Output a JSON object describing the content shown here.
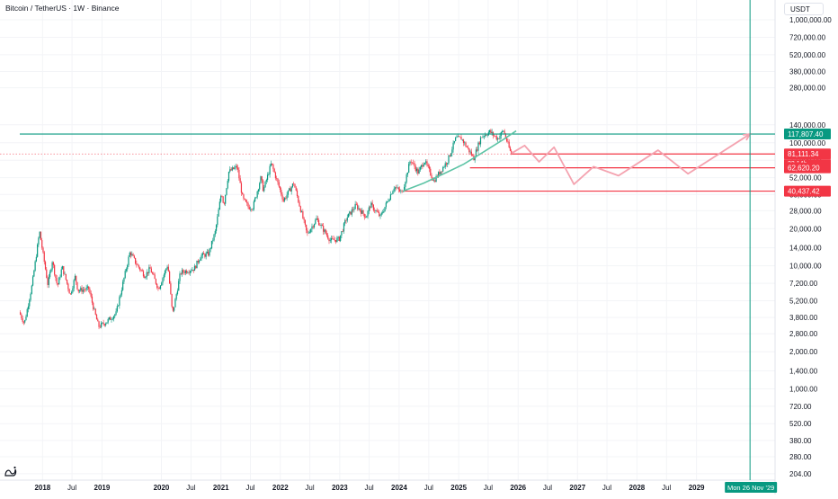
{
  "header": {
    "title": "Bitcoin / TetherUS · 1W · Binance",
    "currency_label": "USDT"
  },
  "chart_data": {
    "type": "candlestick",
    "title": "Bitcoin / TetherUS · 1W · Binance",
    "y_scale": "log",
    "ylim": [
      200,
      1000000
    ],
    "x_range": [
      "2017-08-14",
      "2030-06-01"
    ],
    "y_ticks": [
      "1,000,000.00",
      "720,000.00",
      "520,000.00",
      "380,000.00",
      "280,000.00",
      "140,000.00",
      "100,000.00",
      "72,000.00",
      "52,000.00",
      "38,000.00",
      "28,000.00",
      "20,000.00",
      "14,000.00",
      "10,000.00",
      "7,200.00",
      "5,200.00",
      "3,800.00",
      "2,800.00",
      "2,000.00",
      "1,400.00",
      "1,000.00",
      "720.00",
      "520.00",
      "380.00",
      "280.00",
      "204.00"
    ],
    "x_ticks": [
      {
        "label": "2018",
        "date": "2018-01-01"
      },
      {
        "label": "Jul",
        "date": "2018-07-01"
      },
      {
        "label": "2019",
        "date": "2019-01-01"
      },
      {
        "label": "2020",
        "date": "2020-01-01"
      },
      {
        "label": "Jul",
        "date": "2020-07-01"
      },
      {
        "label": "2021",
        "date": "2021-01-01"
      },
      {
        "label": "Jul",
        "date": "2021-07-01"
      },
      {
        "label": "2022",
        "date": "2022-01-01"
      },
      {
        "label": "Jul",
        "date": "2022-07-01"
      },
      {
        "label": "2023",
        "date": "2023-01-01"
      },
      {
        "label": "Jul",
        "date": "2023-07-01"
      },
      {
        "label": "2024",
        "date": "2024-01-01"
      },
      {
        "label": "Jul",
        "date": "2024-07-01"
      },
      {
        "label": "2025",
        "date": "2025-01-01"
      },
      {
        "label": "Jul",
        "date": "2025-07-01"
      },
      {
        "label": "2026",
        "date": "2026-01-01"
      },
      {
        "label": "Jul",
        "date": "2026-07-01"
      },
      {
        "label": "2027",
        "date": "2027-01-01"
      },
      {
        "label": "Jul",
        "date": "2027-07-01"
      },
      {
        "label": "2028",
        "date": "2028-01-01"
      },
      {
        "label": "Jul",
        "date": "2028-07-01"
      },
      {
        "label": "2029",
        "date": "2029-01-01"
      }
    ],
    "price_path": [
      [
        "2017-08-14",
        4200
      ],
      [
        "2017-09-15",
        3400
      ],
      [
        "2017-11-01",
        7000
      ],
      [
        "2017-12-17",
        19000
      ],
      [
        "2018-02-06",
        7000
      ],
      [
        "2018-03-05",
        11000
      ],
      [
        "2018-04-06",
        6800
      ],
      [
        "2018-05-05",
        9800
      ],
      [
        "2018-06-24",
        5800
      ],
      [
        "2018-07-24",
        8200
      ],
      [
        "2018-08-10",
        6300
      ],
      [
        "2018-10-15",
        6500
      ],
      [
        "2018-11-20",
        4200
      ],
      [
        "2018-12-15",
        3200
      ],
      [
        "2019-02-01",
        3500
      ],
      [
        "2019-04-01",
        4100
      ],
      [
        "2019-06-26",
        13000
      ],
      [
        "2019-08-01",
        10500
      ],
      [
        "2019-09-25",
        8300
      ],
      [
        "2019-10-27",
        9500
      ],
      [
        "2019-12-18",
        6500
      ],
      [
        "2020-02-13",
        10300
      ],
      [
        "2020-03-13",
        4000
      ],
      [
        "2020-05-01",
        8800
      ],
      [
        "2020-07-25",
        9500
      ],
      [
        "2020-09-01",
        12000
      ],
      [
        "2020-10-20",
        12500
      ],
      [
        "2020-12-01",
        19000
      ],
      [
        "2021-01-08",
        40000
      ],
      [
        "2021-01-22",
        31000
      ],
      [
        "2021-02-21",
        58000
      ],
      [
        "2021-04-14",
        64000
      ],
      [
        "2021-05-19",
        35000
      ],
      [
        "2021-06-22",
        30000
      ],
      [
        "2021-07-20",
        30000
      ],
      [
        "2021-09-07",
        52000
      ],
      [
        "2021-09-22",
        41000
      ],
      [
        "2021-11-10",
        68000
      ],
      [
        "2022-01-24",
        34000
      ],
      [
        "2022-03-28",
        47000
      ],
      [
        "2022-06-18",
        18000
      ],
      [
        "2022-08-15",
        24000
      ],
      [
        "2022-11-09",
        16000
      ],
      [
        "2023-01-01",
        16500
      ],
      [
        "2023-02-16",
        24500
      ],
      [
        "2023-04-14",
        31000
      ],
      [
        "2023-06-15",
        25000
      ],
      [
        "2023-07-13",
        31500
      ],
      [
        "2023-09-11",
        25000
      ],
      [
        "2023-12-05",
        44000
      ],
      [
        "2024-01-23",
        39000
      ],
      [
        "2024-03-14",
        73000
      ],
      [
        "2024-05-01",
        57000
      ],
      [
        "2024-06-07",
        72000
      ],
      [
        "2024-08-05",
        49000
      ],
      [
        "2024-10-29",
        72000
      ],
      [
        "2024-12-17",
        108000
      ],
      [
        "2025-01-20",
        109000
      ],
      [
        "2025-04-07",
        75000
      ],
      [
        "2025-05-22",
        112000
      ],
      [
        "2025-07-14",
        123000
      ],
      [
        "2025-09-01",
        108000
      ],
      [
        "2025-10-06",
        126000
      ],
      [
        "2025-11-21",
        82000
      ]
    ],
    "annotations": {
      "horizontal_lines": [
        {
          "price": 117807.4,
          "label": "117,807.40",
          "color": "#089981",
          "start_date": "2017-08-14"
        },
        {
          "price": 81111.34,
          "label": "81,111.34",
          "color": "#f23645",
          "start_date": "2025-11-21",
          "dotted_to_start": true
        },
        {
          "price": 62620.2,
          "label": "62,620.20",
          "color": "#f23645",
          "start_date": "2025-03-11"
        },
        {
          "price": 40437.42,
          "label": "40,437.42",
          "color": "#f23645",
          "start_date": "2024-01-23"
        }
      ],
      "countdown_label": "23 14h",
      "projection_path": [
        [
          "2025-11-21",
          82000
        ],
        [
          "2026-02-10",
          95000
        ],
        [
          "2026-05-10",
          70000
        ],
        [
          "2026-08-10",
          92000
        ],
        [
          "2026-12-10",
          46000
        ],
        [
          "2027-04-10",
          64000
        ],
        [
          "2027-09-10",
          54000
        ],
        [
          "2028-05-10",
          87000
        ],
        [
          "2028-11-10",
          56000
        ],
        [
          "2029-11-26",
          117807
        ]
      ],
      "curve_support": [
        [
          "2024-01-23",
          40437
        ],
        [
          "2024-06-01",
          47000
        ],
        [
          "2024-10-01",
          56000
        ],
        [
          "2025-02-01",
          67000
        ],
        [
          "2025-06-01",
          84000
        ],
        [
          "2025-10-01",
          106000
        ],
        [
          "2025-12-20",
          125000
        ]
      ],
      "vertical_marker": {
        "date": "2029-11-26",
        "label": "Mon 26 Nov '29",
        "color": "#089981"
      }
    }
  }
}
